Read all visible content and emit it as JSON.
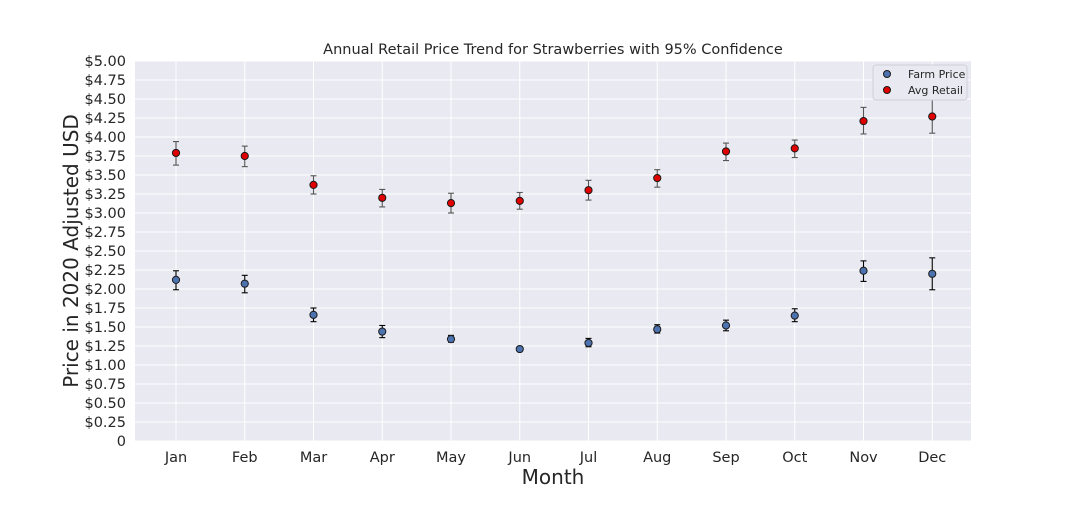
{
  "chart_data": {
    "type": "scatter",
    "title": "Annual Retail Price Trend for Strawberries with 95% Confidence",
    "xlabel": "Month",
    "ylabel": "Price in 2020 Adjusted USD",
    "categories": [
      "Jan",
      "Feb",
      "Mar",
      "Apr",
      "May",
      "Jun",
      "Jul",
      "Aug",
      "Sep",
      "Oct",
      "Nov",
      "Dec"
    ],
    "ylim": [
      0,
      5
    ],
    "yticks": [
      0,
      0.25,
      0.5,
      0.75,
      1.0,
      1.25,
      1.5,
      1.75,
      2.0,
      2.25,
      2.5,
      2.75,
      3.0,
      3.25,
      3.5,
      3.75,
      4.0,
      4.25,
      4.5,
      4.75,
      5.0
    ],
    "ytick_labels": [
      "0",
      "$0.25",
      "$0.50",
      "$0.75",
      "$1.00",
      "$1.25",
      "$1.50",
      "$1.75",
      "$2.00",
      "$2.25",
      "$2.50",
      "$2.75",
      "$3.00",
      "$3.25",
      "$3.50",
      "$3.75",
      "$4.00",
      "$4.25",
      "$4.50",
      "$4.75",
      "$5.00"
    ],
    "grid": true,
    "legend_position": "top-right",
    "series": [
      {
        "name": "Farm Price",
        "color": "#4c72b0",
        "errbar_color": "#000000",
        "values": [
          2.12,
          2.07,
          1.66,
          1.44,
          1.34,
          1.21,
          1.29,
          1.47,
          1.52,
          1.65,
          2.24,
          2.2
        ],
        "ci_low": [
          1.99,
          1.95,
          1.57,
          1.36,
          1.3,
          1.2,
          1.24,
          1.42,
          1.45,
          1.57,
          2.1,
          1.99
        ],
        "ci_high": [
          2.24,
          2.18,
          1.75,
          1.52,
          1.39,
          1.22,
          1.35,
          1.53,
          1.59,
          1.74,
          2.37,
          2.41
        ]
      },
      {
        "name": "Avg Retail",
        "color": "#e00000",
        "errbar_color": "#555555",
        "values": [
          3.79,
          3.75,
          3.37,
          3.2,
          3.13,
          3.16,
          3.3,
          3.46,
          3.81,
          3.85,
          4.21,
          4.27
        ],
        "ci_low": [
          3.63,
          3.61,
          3.25,
          3.08,
          3.0,
          3.05,
          3.17,
          3.34,
          3.69,
          3.73,
          4.04,
          4.05
        ],
        "ci_high": [
          3.94,
          3.88,
          3.49,
          3.31,
          3.26,
          3.27,
          3.43,
          3.57,
          3.92,
          3.96,
          4.39,
          4.49
        ]
      }
    ]
  }
}
